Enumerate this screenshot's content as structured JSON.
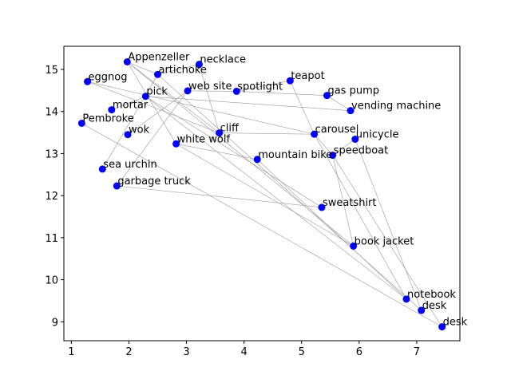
{
  "chart_data": {
    "type": "scatter",
    "title": "",
    "xlabel": "",
    "ylabel": "",
    "xlim": [
      0.87,
      7.75
    ],
    "ylim": [
      8.55,
      15.55
    ],
    "xticks": [
      1,
      2,
      3,
      4,
      5,
      6,
      7
    ],
    "yticks": [
      9,
      10,
      11,
      12,
      13,
      14,
      15
    ],
    "grid": false,
    "point_color": "#0000ff",
    "edge_color": "#999999",
    "points": [
      {
        "label": "Appenzeller",
        "x": 1.97,
        "y": 15.18
      },
      {
        "label": "necklace",
        "x": 3.22,
        "y": 15.12
      },
      {
        "label": "artichoke",
        "x": 2.5,
        "y": 14.88
      },
      {
        "label": "eggnog",
        "x": 1.28,
        "y": 14.71
      },
      {
        "label": "teapot",
        "x": 4.8,
        "y": 14.73
      },
      {
        "label": "web site",
        "x": 3.02,
        "y": 14.49
      },
      {
        "label": "spotlight",
        "x": 3.87,
        "y": 14.48
      },
      {
        "label": "gas pump",
        "x": 5.44,
        "y": 14.38
      },
      {
        "label": "pick",
        "x": 2.29,
        "y": 14.36
      },
      {
        "label": "mortar",
        "x": 1.7,
        "y": 14.04
      },
      {
        "label": "vending machine",
        "x": 5.85,
        "y": 14.02
      },
      {
        "label": "Pembroke",
        "x": 1.18,
        "y": 13.72
      },
      {
        "label": "wok",
        "x": 1.98,
        "y": 13.45
      },
      {
        "label": "cliff",
        "x": 3.57,
        "y": 13.49
      },
      {
        "label": "carousel",
        "x": 5.22,
        "y": 13.46
      },
      {
        "label": "unicycle",
        "x": 5.93,
        "y": 13.34
      },
      {
        "label": "white wolf",
        "x": 2.82,
        "y": 13.23
      },
      {
        "label": "speedboat",
        "x": 5.54,
        "y": 12.96
      },
      {
        "label": "mountain bike",
        "x": 4.23,
        "y": 12.86
      },
      {
        "label": "sea urchin",
        "x": 1.54,
        "y": 12.63
      },
      {
        "label": "garbage truck",
        "x": 1.79,
        "y": 12.23
      },
      {
        "label": "sweatshirt",
        "x": 5.35,
        "y": 11.72
      },
      {
        "label": "book jacket",
        "x": 5.9,
        "y": 10.8
      },
      {
        "label": "notebook",
        "x": 6.82,
        "y": 9.54
      },
      {
        "label": "desk",
        "x": 7.08,
        "y": 9.27
      },
      {
        "label": "desk",
        "x": 7.44,
        "y": 8.88
      }
    ],
    "edges": [
      [
        0,
        2
      ],
      [
        0,
        16
      ],
      [
        0,
        22
      ],
      [
        0,
        13
      ],
      [
        1,
        2
      ],
      [
        1,
        13
      ],
      [
        2,
        19
      ],
      [
        2,
        24
      ],
      [
        3,
        14
      ],
      [
        3,
        13
      ],
      [
        4,
        14
      ],
      [
        4,
        6
      ],
      [
        5,
        12
      ],
      [
        5,
        20
      ],
      [
        5,
        6
      ],
      [
        6,
        7
      ],
      [
        7,
        10
      ],
      [
        8,
        10
      ],
      [
        8,
        9
      ],
      [
        8,
        23
      ],
      [
        8,
        21
      ],
      [
        11,
        25
      ],
      [
        13,
        14
      ],
      [
        14,
        17
      ],
      [
        14,
        23
      ],
      [
        15,
        17
      ],
      [
        15,
        24
      ],
      [
        16,
        18
      ],
      [
        16,
        22
      ],
      [
        17,
        25
      ],
      [
        17,
        22
      ],
      [
        18,
        23
      ],
      [
        20,
        21
      ]
    ]
  }
}
